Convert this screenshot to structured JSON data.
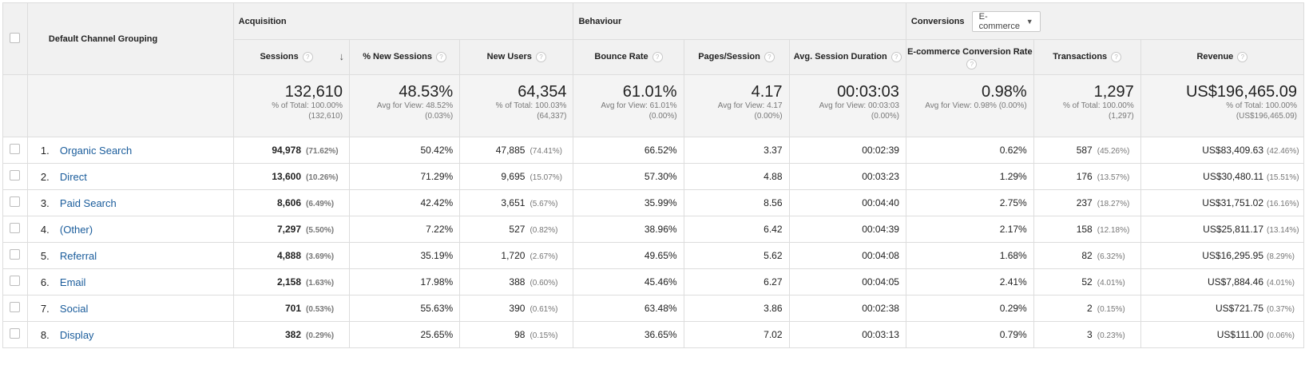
{
  "header": {
    "dimension": "Default Channel Grouping",
    "groups": {
      "acquisition": "Acquisition",
      "behaviour": "Behaviour",
      "conversions": "Conversions"
    },
    "conversions_select": "E-commerce",
    "columns": {
      "sessions": "Sessions",
      "new_sessions": "% New Sessions",
      "new_users": "New Users",
      "bounce_rate": "Bounce Rate",
      "pages_session": "Pages/Session",
      "avg_duration": "Avg. Session Duration",
      "ecom_rate": "E-commerce Conversion Rate",
      "transactions": "Transactions",
      "revenue": "Revenue"
    },
    "help_glyph": "?",
    "sort_glyph": "↓"
  },
  "totals": {
    "sessions": {
      "value": "132,610",
      "line1": "% of Total: 100.00%",
      "line2": "(132,610)"
    },
    "new_sessions": {
      "value": "48.53%",
      "line1": "Avg for View: 48.52%",
      "line2": "(0.03%)"
    },
    "new_users": {
      "value": "64,354",
      "line1": "% of Total: 100.03%",
      "line2": "(64,337)"
    },
    "bounce_rate": {
      "value": "61.01%",
      "line1": "Avg for View: 61.01%",
      "line2": "(0.00%)"
    },
    "pages_session": {
      "value": "4.17",
      "line1": "Avg for View: 4.17",
      "line2": "(0.00%)"
    },
    "avg_duration": {
      "value": "00:03:03",
      "line1": "Avg for View: 00:03:03",
      "line2": "(0.00%)"
    },
    "ecom_rate": {
      "value": "0.98%",
      "line1": "Avg for View: 0.98% (0.00%)",
      "line2": ""
    },
    "transactions": {
      "value": "1,297",
      "line1": "% of Total: 100.00%",
      "line2": "(1,297)"
    },
    "revenue": {
      "value": "US$196,465.09",
      "line1": "% of Total: 100.00%",
      "line2": "(US$196,465.09)"
    }
  },
  "rows": [
    {
      "index": "1.",
      "channel": "Organic Search",
      "sessions": "94,978",
      "sessions_pct": "(71.62%)",
      "new_sessions": "50.42%",
      "new_users": "47,885",
      "new_users_pct": "(74.41%)",
      "bounce_rate": "66.52%",
      "pages_session": "3.37",
      "avg_duration": "00:02:39",
      "ecom_rate": "0.62%",
      "transactions": "587",
      "transactions_pct": "(45.26%)",
      "revenue": "US$83,409.63",
      "revenue_pct": "(42.46%)"
    },
    {
      "index": "2.",
      "channel": "Direct",
      "sessions": "13,600",
      "sessions_pct": "(10.26%)",
      "new_sessions": "71.29%",
      "new_users": "9,695",
      "new_users_pct": "(15.07%)",
      "bounce_rate": "57.30%",
      "pages_session": "4.88",
      "avg_duration": "00:03:23",
      "ecom_rate": "1.29%",
      "transactions": "176",
      "transactions_pct": "(13.57%)",
      "revenue": "US$30,480.11",
      "revenue_pct": "(15.51%)"
    },
    {
      "index": "3.",
      "channel": "Paid Search",
      "sessions": "8,606",
      "sessions_pct": "(6.49%)",
      "new_sessions": "42.42%",
      "new_users": "3,651",
      "new_users_pct": "(5.67%)",
      "bounce_rate": "35.99%",
      "pages_session": "8.56",
      "avg_duration": "00:04:40",
      "ecom_rate": "2.75%",
      "transactions": "237",
      "transactions_pct": "(18.27%)",
      "revenue": "US$31,751.02",
      "revenue_pct": "(16.16%)"
    },
    {
      "index": "4.",
      "channel": "(Other)",
      "sessions": "7,297",
      "sessions_pct": "(5.50%)",
      "new_sessions": "7.22%",
      "new_users": "527",
      "new_users_pct": "(0.82%)",
      "bounce_rate": "38.96%",
      "pages_session": "6.42",
      "avg_duration": "00:04:39",
      "ecom_rate": "2.17%",
      "transactions": "158",
      "transactions_pct": "(12.18%)",
      "revenue": "US$25,811.17",
      "revenue_pct": "(13.14%)"
    },
    {
      "index": "5.",
      "channel": "Referral",
      "sessions": "4,888",
      "sessions_pct": "(3.69%)",
      "new_sessions": "35.19%",
      "new_users": "1,720",
      "new_users_pct": "(2.67%)",
      "bounce_rate": "49.65%",
      "pages_session": "5.62",
      "avg_duration": "00:04:08",
      "ecom_rate": "1.68%",
      "transactions": "82",
      "transactions_pct": "(6.32%)",
      "revenue": "US$16,295.95",
      "revenue_pct": "(8.29%)"
    },
    {
      "index": "6.",
      "channel": "Email",
      "sessions": "2,158",
      "sessions_pct": "(1.63%)",
      "new_sessions": "17.98%",
      "new_users": "388",
      "new_users_pct": "(0.60%)",
      "bounce_rate": "45.46%",
      "pages_session": "6.27",
      "avg_duration": "00:04:05",
      "ecom_rate": "2.41%",
      "transactions": "52",
      "transactions_pct": "(4.01%)",
      "revenue": "US$7,884.46",
      "revenue_pct": "(4.01%)"
    },
    {
      "index": "7.",
      "channel": "Social",
      "sessions": "701",
      "sessions_pct": "(0.53%)",
      "new_sessions": "55.63%",
      "new_users": "390",
      "new_users_pct": "(0.61%)",
      "bounce_rate": "63.48%",
      "pages_session": "3.86",
      "avg_duration": "00:02:38",
      "ecom_rate": "0.29%",
      "transactions": "2",
      "transactions_pct": "(0.15%)",
      "revenue": "US$721.75",
      "revenue_pct": "(0.37%)"
    },
    {
      "index": "8.",
      "channel": "Display",
      "sessions": "382",
      "sessions_pct": "(0.29%)",
      "new_sessions": "25.65%",
      "new_users": "98",
      "new_users_pct": "(0.15%)",
      "bounce_rate": "36.65%",
      "pages_session": "7.02",
      "avg_duration": "00:03:13",
      "ecom_rate": "0.79%",
      "transactions": "3",
      "transactions_pct": "(0.23%)",
      "revenue": "US$111.00",
      "revenue_pct": "(0.06%)"
    }
  ]
}
